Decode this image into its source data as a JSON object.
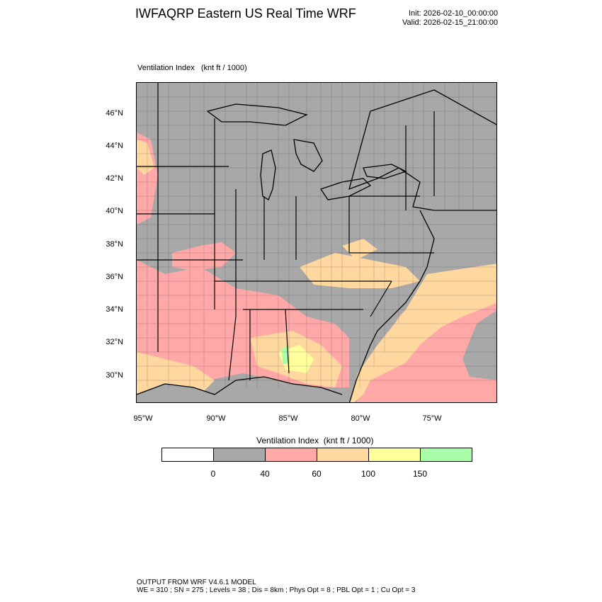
{
  "title": "IWFAQRP Eastern US Real Time WRF",
  "init": "Init: 2026-02-10_00:00:00",
  "valid": "Valid: 2026-02-15_21:00:00",
  "plot_label": "Ventilation Index   (knt ft / 1000)",
  "lat_labels": [
    "46°N",
    "44°N",
    "42°N",
    "40°N",
    "38°N",
    "36°N",
    "34°N",
    "32°N",
    "30°N"
  ],
  "lon_labels": [
    "95°W",
    "90°W",
    "85°W",
    "80°W",
    "75°W"
  ],
  "legend": {
    "title": "Ventilation Index  (knt ft / 1000)",
    "colors": [
      "#ffffff",
      "#a8a8a8",
      "#ffa8a8",
      "#ffd8a0",
      "#ffff9c",
      "#a8ffa8"
    ],
    "ticks": [
      "0",
      "40",
      "60",
      "100",
      "150"
    ]
  },
  "footer": {
    "line1": "OUTPUT FROM WRF V4.6.1 MODEL",
    "line2": "WE = 310 ; SN = 275 ; Levels = 38 ; Dis = 8km ; Phys Opt = 8 ; PBL Opt = 1 ; Cu Opt = 3"
  }
}
